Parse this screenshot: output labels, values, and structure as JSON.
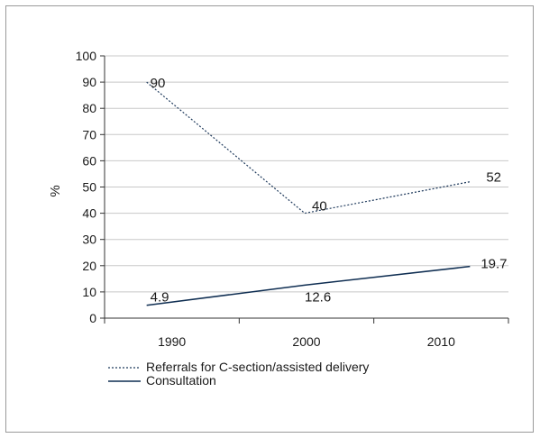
{
  "chart_data": {
    "type": "line",
    "title": "",
    "xlabel": "",
    "ylabel": "%",
    "categories": [
      "1990",
      "2000",
      "2010"
    ],
    "ylim": [
      0,
      100
    ],
    "yticks": [
      0,
      10,
      20,
      30,
      40,
      50,
      60,
      70,
      80,
      90,
      100
    ],
    "grid": true,
    "legend_position": "bottom-left",
    "series": [
      {
        "name": "Referrals for C-section/assisted delivery",
        "values": [
          90,
          40,
          52
        ],
        "labels": [
          "90",
          "40",
          "52"
        ],
        "style": "dotted",
        "color": "#1f3a5c"
      },
      {
        "name": "Consultation",
        "values": [
          4.9,
          12.6,
          19.7
        ],
        "labels": [
          "4.9",
          "12.6",
          "19.7"
        ],
        "style": "solid",
        "color": "#0f2e52"
      }
    ]
  }
}
